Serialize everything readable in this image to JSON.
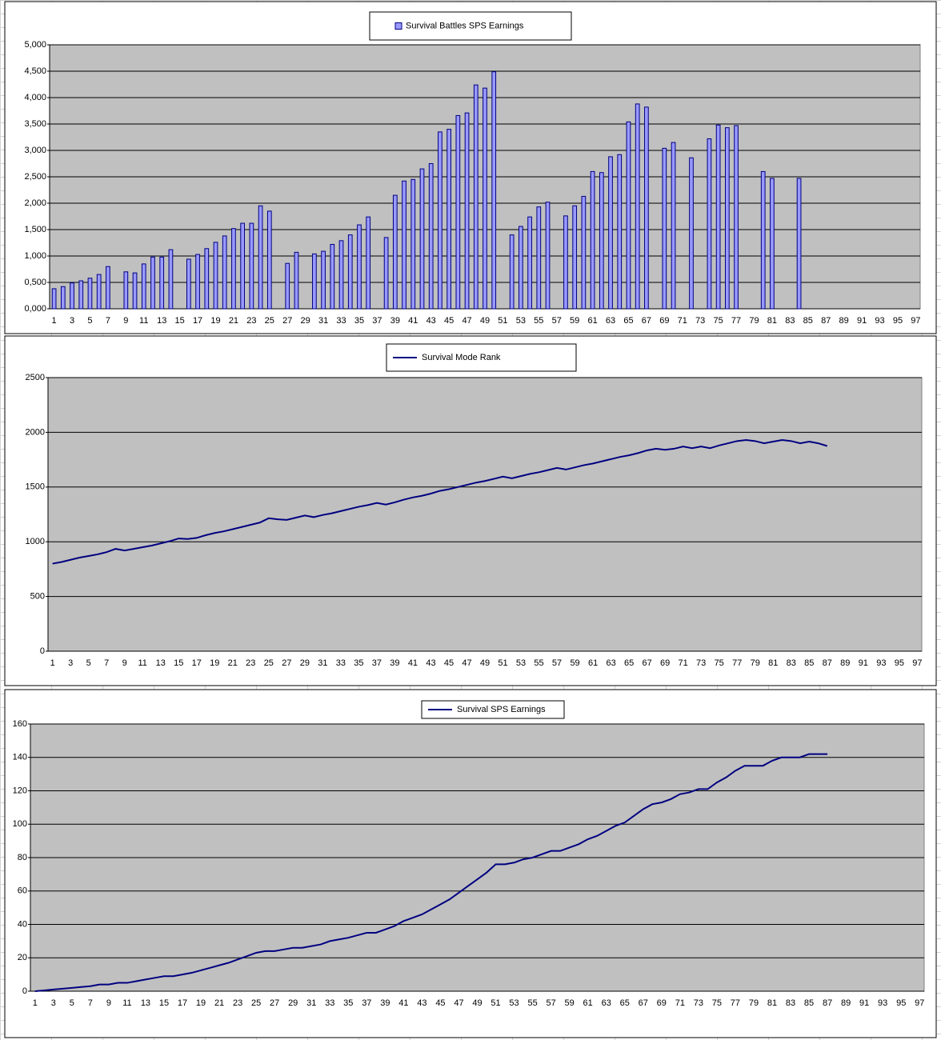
{
  "chart_data": [
    {
      "type": "bar",
      "categories": [
        1,
        null,
        3,
        null,
        5,
        null,
        7,
        null,
        9,
        null,
        11,
        null,
        13,
        null,
        15,
        null,
        17,
        null,
        19,
        null,
        21,
        null,
        23,
        null,
        25,
        null,
        27,
        null,
        29,
        null,
        31,
        null,
        33,
        null,
        35,
        null,
        37,
        null,
        39,
        null,
        41,
        null,
        43,
        null,
        45,
        null,
        47,
        null,
        49,
        null,
        51,
        null,
        53,
        null,
        55,
        null,
        57,
        null,
        59,
        null,
        61,
        null,
        63,
        null,
        65,
        null,
        67,
        null,
        69,
        null,
        71,
        null,
        73,
        null,
        75,
        null,
        77,
        null,
        79,
        null,
        81,
        null,
        83,
        null,
        85,
        null,
        87,
        null,
        89,
        null,
        91,
        null,
        93,
        null,
        95,
        null,
        97
      ],
      "series": [
        {
          "name": "Survival Battles SPS Earnings",
          "color": "#9999ff",
          "values": [
            380,
            420,
            490,
            530,
            580,
            650,
            800,
            null,
            700,
            680,
            850,
            980,
            980,
            1120,
            null,
            940,
            1030,
            1140,
            1260,
            1380,
            1520,
            1620,
            1620,
            1950,
            1850,
            null,
            860,
            1070,
            null,
            1040,
            1090,
            1220,
            1290,
            1400,
            1590,
            1740,
            null,
            1350,
            2150,
            2420,
            2450,
            2650,
            2750,
            3350,
            3400,
            3660,
            3710,
            4240,
            4180,
            4490,
            null,
            1400,
            1560,
            1740,
            1930,
            2020,
            null,
            1760,
            1950,
            2130,
            2600,
            2580,
            2880,
            2920,
            3540,
            3880,
            3820,
            null,
            3040,
            3150,
            null,
            2860,
            null,
            3220,
            3480,
            3430,
            3470,
            null,
            null,
            2600,
            2470,
            null,
            null,
            2470,
            null,
            null,
            null,
            null,
            null,
            null,
            null,
            null,
            null,
            null,
            null,
            null,
            null
          ]
        }
      ],
      "ylim": [
        0,
        5000
      ],
      "yticks": [
        {
          "value": 0,
          "label": "0,000"
        },
        {
          "value": 500,
          "label": "0,500"
        },
        {
          "value": 1000,
          "label": "1,000"
        },
        {
          "value": 1500,
          "label": "1,500"
        },
        {
          "value": 2000,
          "label": "2,000"
        },
        {
          "value": 2500,
          "label": "2,500"
        },
        {
          "value": 3000,
          "label": "3,000"
        },
        {
          "value": 3500,
          "label": "3,500"
        },
        {
          "value": 4000,
          "label": "4,000"
        },
        {
          "value": 4500,
          "label": "4,500"
        },
        {
          "value": 5000,
          "label": "5,000"
        }
      ],
      "grid": true
    },
    {
      "type": "line",
      "categories": [
        1,
        null,
        3,
        null,
        5,
        null,
        7,
        null,
        9,
        null,
        11,
        null,
        13,
        null,
        15,
        null,
        17,
        null,
        19,
        null,
        21,
        null,
        23,
        null,
        25,
        null,
        27,
        null,
        29,
        null,
        31,
        null,
        33,
        null,
        35,
        null,
        37,
        null,
        39,
        null,
        41,
        null,
        43,
        null,
        45,
        null,
        47,
        null,
        49,
        null,
        51,
        null,
        53,
        null,
        55,
        null,
        57,
        null,
        59,
        null,
        61,
        null,
        63,
        null,
        65,
        null,
        67,
        null,
        69,
        null,
        71,
        null,
        73,
        null,
        75,
        null,
        77,
        null,
        79,
        null,
        81,
        null,
        83,
        null,
        85,
        null,
        87,
        null,
        89,
        null,
        91,
        null,
        93,
        null,
        95,
        null,
        97
      ],
      "series": [
        {
          "name": "Survival Mode Rank",
          "color": "#000080",
          "values": [
            800,
            815,
            835,
            855,
            870,
            885,
            905,
            935,
            920,
            935,
            950,
            965,
            985,
            1005,
            1030,
            1025,
            1035,
            1060,
            1080,
            1095,
            1115,
            1135,
            1155,
            1175,
            1215,
            1205,
            1200,
            1220,
            1240,
            1225,
            1245,
            1260,
            1280,
            1300,
            1320,
            1335,
            1355,
            1340,
            1360,
            1385,
            1405,
            1420,
            1440,
            1465,
            1480,
            1500,
            1520,
            1540,
            1555,
            1575,
            1595,
            1580,
            1600,
            1620,
            1635,
            1655,
            1675,
            1660,
            1680,
            1700,
            1715,
            1735,
            1755,
            1775,
            1790,
            1810,
            1835,
            1850,
            1840,
            1850,
            1870,
            1855,
            1870,
            1855,
            1880,
            1900,
            1920,
            1930,
            1920,
            1900,
            1915,
            1930,
            1920,
            1900,
            1915,
            1900,
            1875,
            null,
            null,
            null,
            null,
            null,
            null,
            null,
            null,
            null,
            null
          ]
        }
      ],
      "ylim": [
        0,
        2500
      ],
      "yticks": [
        0,
        500,
        1000,
        1500,
        2000,
        2500
      ],
      "grid": true
    },
    {
      "type": "line",
      "categories": [
        1,
        null,
        3,
        null,
        5,
        null,
        7,
        null,
        9,
        null,
        11,
        null,
        13,
        null,
        15,
        null,
        17,
        null,
        19,
        null,
        21,
        null,
        23,
        null,
        25,
        null,
        27,
        null,
        29,
        null,
        31,
        null,
        33,
        null,
        35,
        null,
        37,
        null,
        39,
        null,
        41,
        null,
        43,
        null,
        45,
        null,
        47,
        null,
        49,
        null,
        51,
        null,
        53,
        null,
        55,
        null,
        57,
        null,
        59,
        null,
        61,
        null,
        63,
        null,
        65,
        null,
        67,
        null,
        69,
        null,
        71,
        null,
        73,
        null,
        75,
        null,
        77,
        null,
        79,
        null,
        81,
        null,
        83,
        null,
        85,
        null,
        87,
        null,
        89,
        null,
        91,
        null,
        93,
        null,
        95,
        null,
        97
      ],
      "series": [
        {
          "name": "Survival SPS Earnings",
          "color": "#000080",
          "values": [
            0,
            0.5,
            1,
            1.5,
            2,
            2.5,
            3,
            4,
            4,
            5,
            5,
            6,
            7,
            8,
            9,
            9,
            10,
            11,
            12.5,
            14,
            15.5,
            17,
            19,
            21,
            23,
            24,
            24,
            25,
            26,
            26,
            27,
            28,
            30,
            31,
            32,
            33.5,
            35,
            35,
            37,
            39,
            42,
            44,
            46,
            49,
            52,
            55,
            59,
            63,
            67,
            71,
            76,
            76,
            77,
            79,
            80,
            82,
            84,
            84,
            86,
            88,
            91,
            93,
            96,
            99,
            101,
            105,
            109,
            112,
            113,
            115,
            118,
            119,
            121,
            121,
            125,
            128,
            132,
            135,
            135,
            135,
            138,
            140,
            140,
            140,
            142,
            142,
            142,
            null,
            null,
            null,
            null,
            null,
            null,
            null,
            null,
            null,
            null
          ]
        }
      ],
      "ylim": [
        0,
        160
      ],
      "yticks": [
        0,
        20,
        40,
        60,
        80,
        100,
        120,
        140,
        160
      ],
      "grid": true
    }
  ]
}
